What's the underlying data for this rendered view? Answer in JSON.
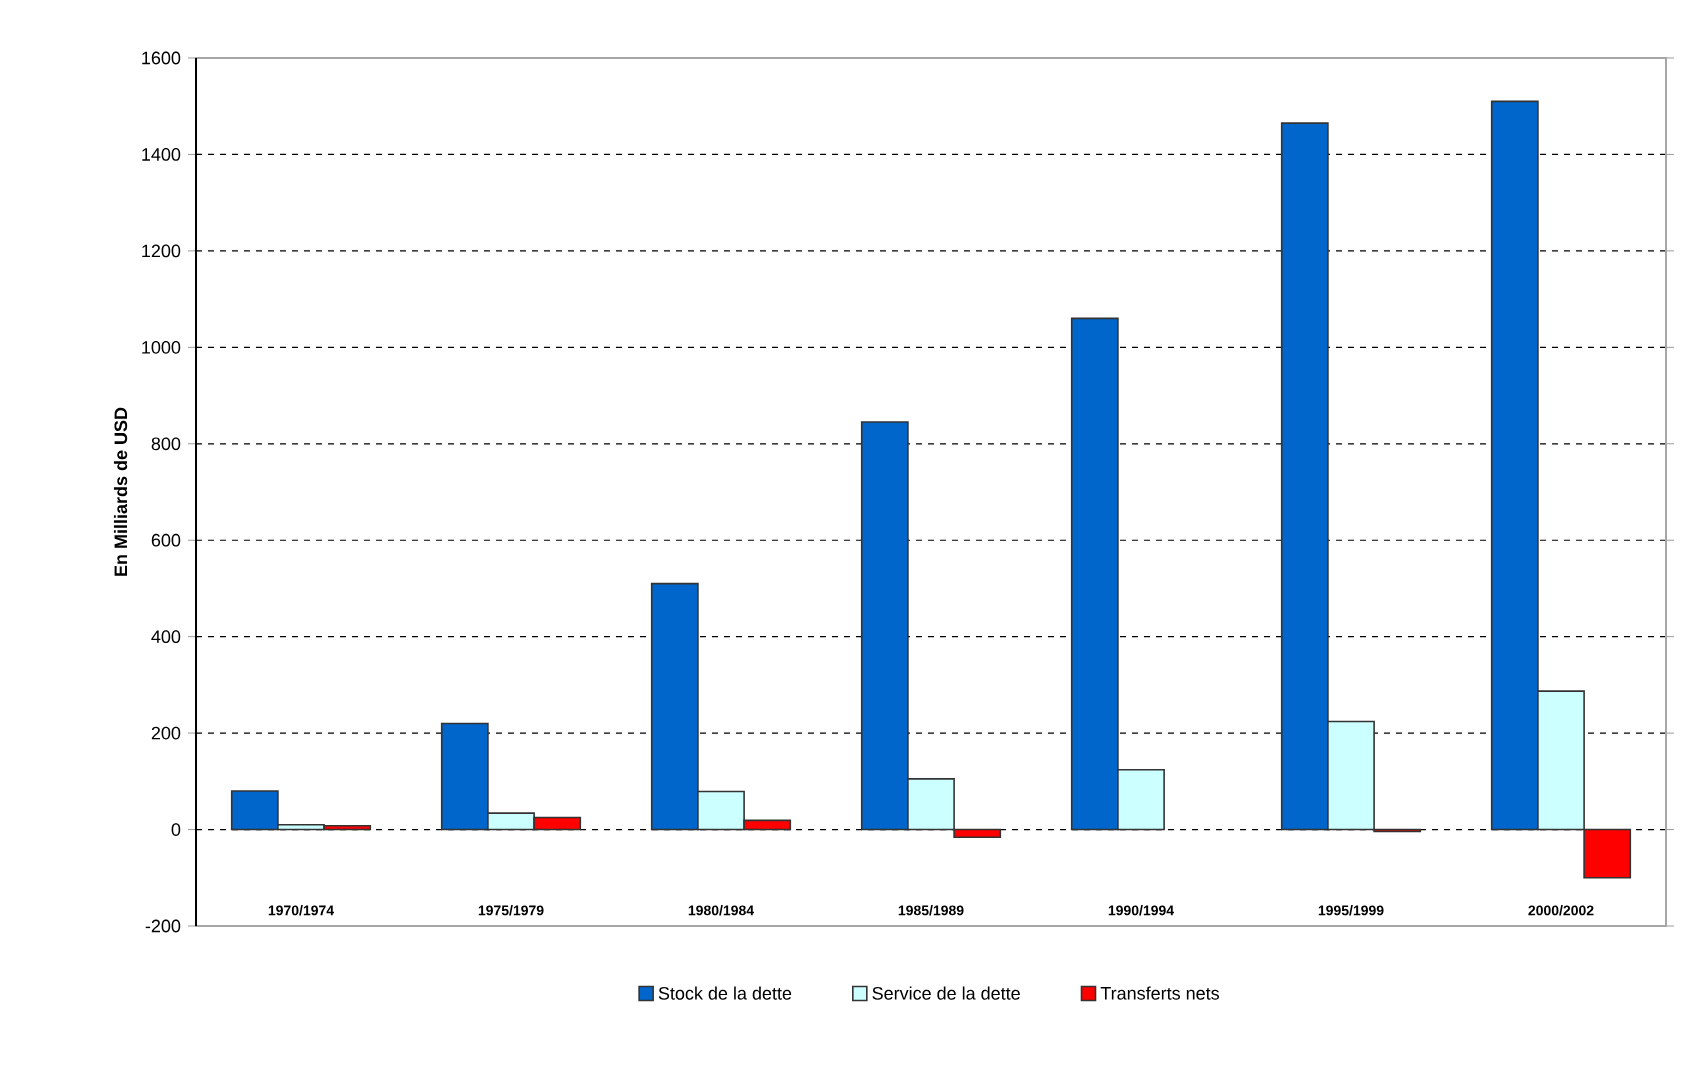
{
  "chart_data": {
    "type": "bar",
    "ylabel": "En Milliards de USD",
    "categories": [
      "1970/1974",
      "1975/1979",
      "1980/1984",
      "1985/1989",
      "1990/1994",
      "1995/1999",
      "2000/2002"
    ],
    "series": [
      {
        "name": "Stock de la dette",
        "color": "#0066cc",
        "values": [
          80,
          220,
          510,
          845,
          1060,
          1465,
          1510
        ]
      },
      {
        "name": "Service de la dette",
        "color": "#ccffff",
        "values": [
          10,
          34,
          79,
          105,
          124,
          224,
          287
        ]
      },
      {
        "name": "Transferts nets",
        "color": "#ff0000",
        "values": [
          8,
          25,
          19,
          -16,
          null,
          -4,
          -100
        ]
      }
    ],
    "ylim": [
      -200,
      1600
    ],
    "yticks": [
      -200,
      0,
      200,
      400,
      600,
      800,
      1000,
      1200,
      1400,
      1600
    ],
    "grid": "y",
    "legend": "bottom"
  }
}
